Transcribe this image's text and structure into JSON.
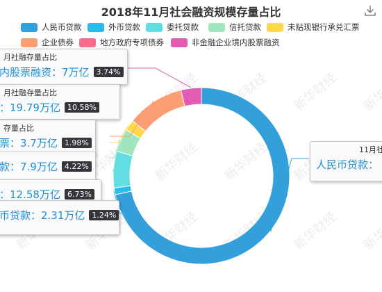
{
  "title": "2018年11月社会融资规模存量占比",
  "watermark": "新华财经",
  "icons": {
    "download": "download-icon"
  },
  "chart_data": {
    "type": "pie",
    "variant": "donut",
    "unit": "万亿",
    "slices": [
      {
        "name": "人民币贷款",
        "value": 134.24,
        "pct": "",
        "color": "#34a0db"
      },
      {
        "name": "外币贷款",
        "value": 2.31,
        "pct": "1.24%",
        "color": "#2bbbe8"
      },
      {
        "name": "委托贷款",
        "value": 12.58,
        "pct": "6.73%",
        "color": "#62dde2"
      },
      {
        "name": "信托贷款",
        "value": 7.9,
        "pct": "4.22%",
        "color": "#9fe5bd"
      },
      {
        "name": "未贴现银行承兑汇票",
        "value": 3.7,
        "pct": "1.98%",
        "color": "#ffd84d"
      },
      {
        "name": "企业债券",
        "value": 19.79,
        "pct": "10.58%",
        "color": "#fd9d75"
      },
      {
        "name": "地方政府专项债券",
        "value": 0,
        "pct": "",
        "color": "#fc6a8a"
      },
      {
        "name": "非金融企业境内股票融资",
        "value": 7,
        "pct": "3.74%",
        "color": "#e35cb4"
      }
    ],
    "legend_position": "top"
  },
  "tooltips": [
    {
      "head": "月社融存量占比",
      "line": "内股票融资：7万亿",
      "pct": "3.74%"
    },
    {
      "head": "月社融存量占比",
      "line": "：19.79万亿",
      "pct": "10.58%"
    },
    {
      "head": "存量占比",
      "line": "票：3.7万亿",
      "pct": "1.98%"
    },
    {
      "head": "",
      "line": "款：7.9万亿",
      "pct": "4.22%"
    },
    {
      "head": "",
      "line": "：12.58万亿",
      "pct": "6.73%"
    },
    {
      "head": "",
      "line": "币贷款：2.31万亿",
      "pct": "1.24%"
    },
    {
      "head": "11月社",
      "line": "人民币贷款：",
      "pct": ""
    }
  ]
}
